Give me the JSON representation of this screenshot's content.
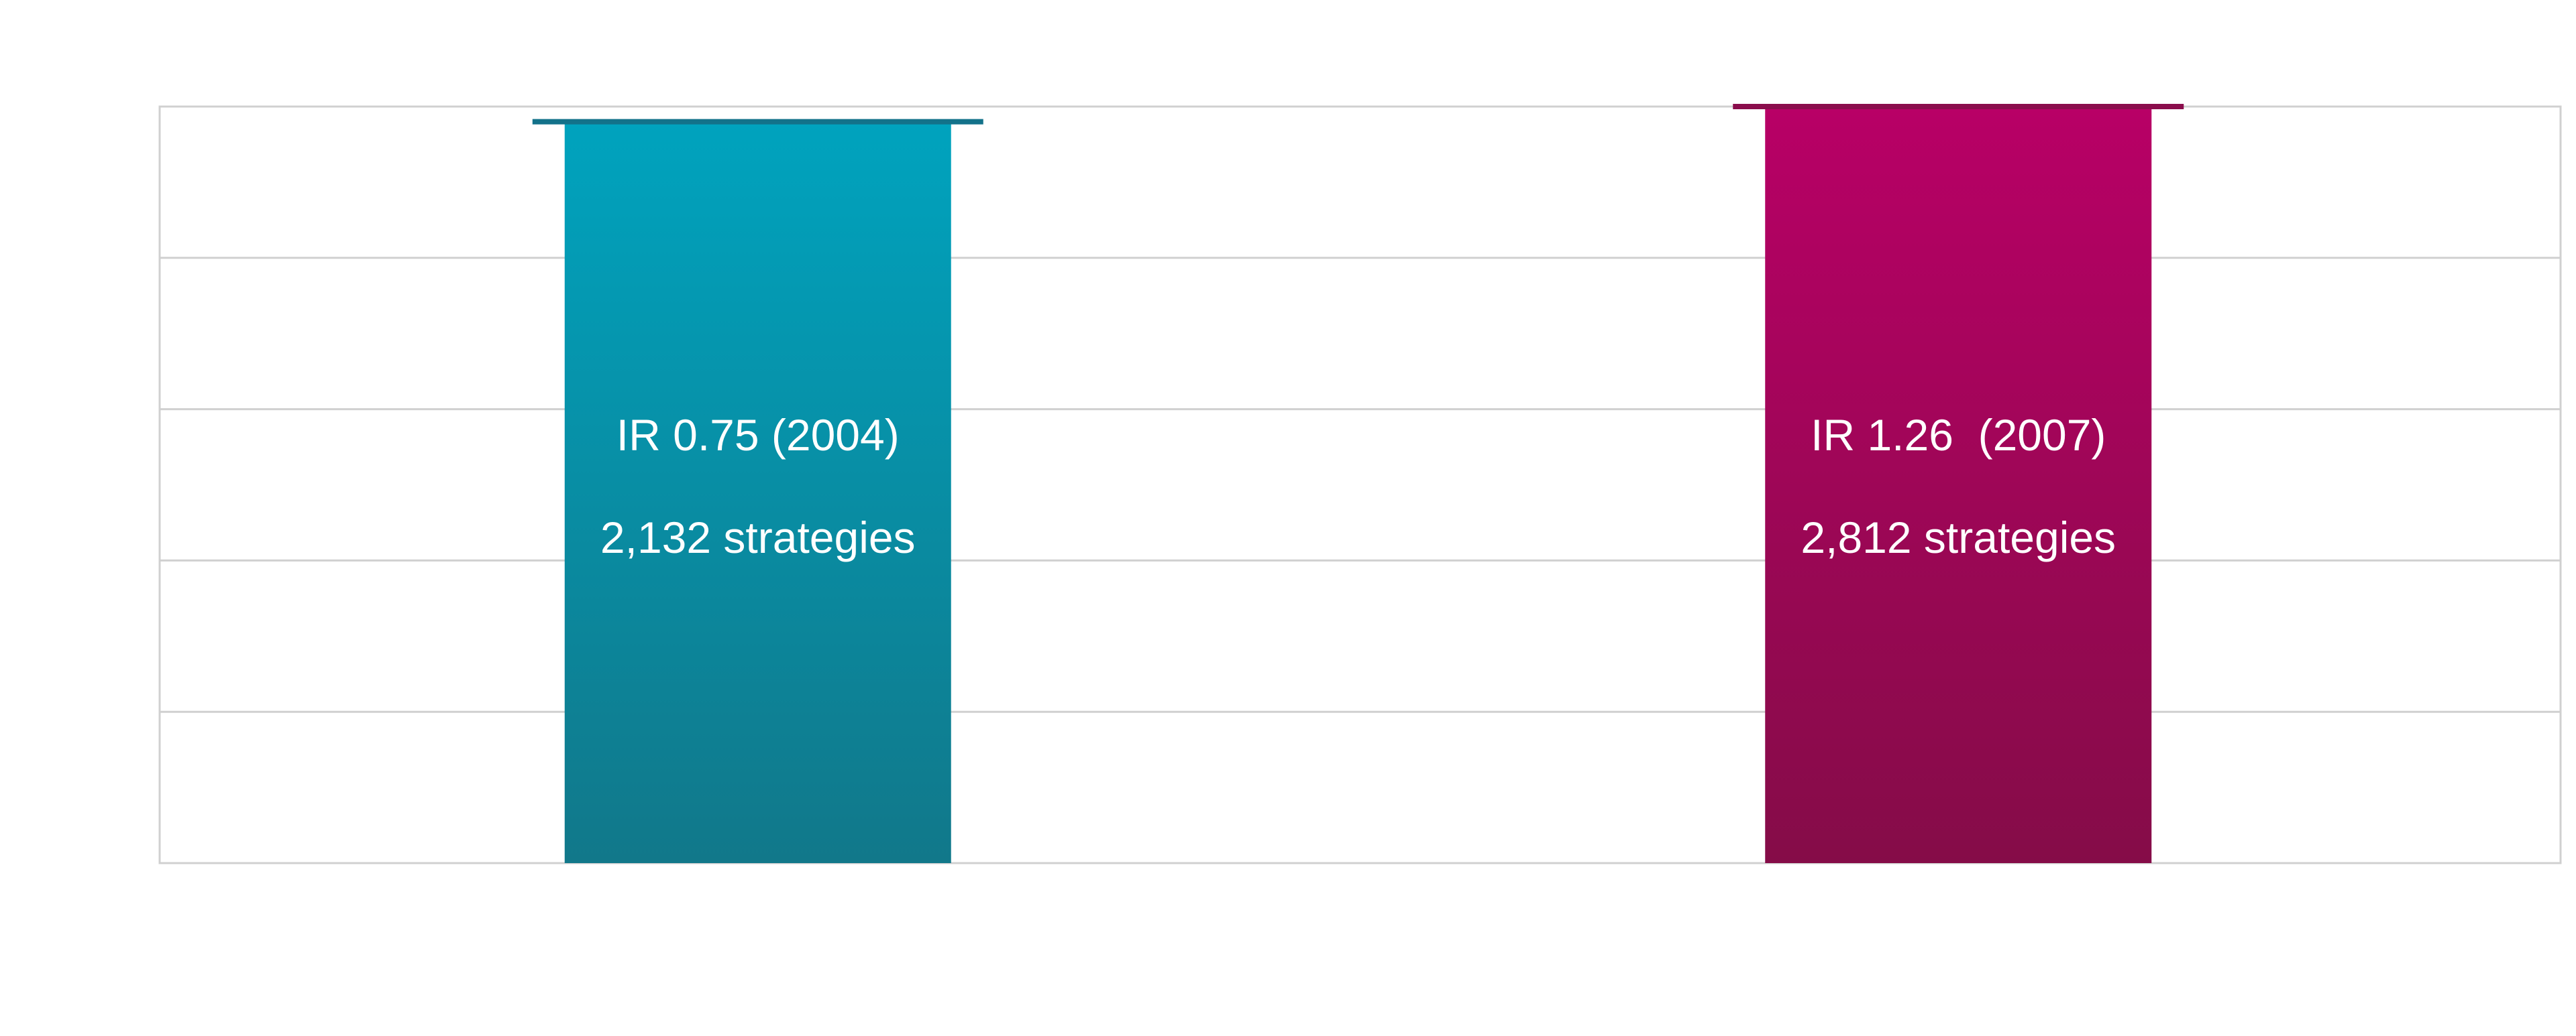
{
  "chart_data": {
    "type": "bar",
    "categories": [
      "",
      ""
    ],
    "values": [
      4.9,
      5.0
    ],
    "ylim": [
      0,
      5
    ],
    "grid": true,
    "legend": "none",
    "bars": [
      {
        "label_line1": "IR 0.75 (2004)",
        "label_line2": "2,132 strategies",
        "color_top": "#00a3be",
        "color_bottom": "#11788a",
        "marker_color": "#13728a"
      },
      {
        "label_line1": "IR 1.26  (2007)",
        "label_line2": "2,812 strategies",
        "color_top": "#b80066",
        "color_bottom": "#850c48",
        "marker_color": "#8a0d4c"
      }
    ],
    "gridline_color": "#d0d0d0"
  }
}
